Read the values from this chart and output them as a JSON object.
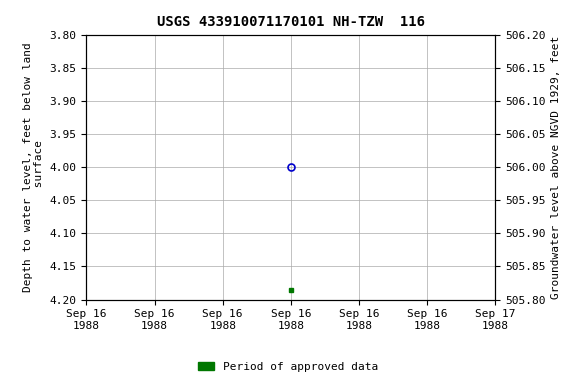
{
  "title": "USGS 433910071170101 NH-TZW  116",
  "ylabel_left": "Depth to water level, feet below land\n surface",
  "ylabel_right": "Groundwater level above NGVD 1929, feet",
  "ylim_left": [
    4.2,
    3.8
  ],
  "ylim_right": [
    505.8,
    506.2
  ],
  "yticks_left": [
    3.8,
    3.85,
    3.9,
    3.95,
    4.0,
    4.05,
    4.1,
    4.15,
    4.2
  ],
  "yticks_right": [
    506.2,
    506.15,
    506.1,
    506.05,
    506.0,
    505.95,
    505.9,
    505.85,
    505.8
  ],
  "circle_point": {
    "date_hours": 12,
    "depth": 4.0
  },
  "square_point": {
    "date_hours": 12,
    "depth": 4.185
  },
  "circle_color": "#0000cc",
  "square_color": "#007700",
  "background_color": "#ffffff",
  "grid_color": "#aaaaaa",
  "legend_label": "Period of approved data",
  "legend_color": "#007700",
  "title_fontsize": 10,
  "axis_label_fontsize": 8,
  "tick_fontsize": 8,
  "xstart_hours": 0,
  "xend_hours": 24,
  "xtick_hours": [
    0,
    4,
    8,
    12,
    16,
    20,
    24
  ],
  "xtick_labels": [
    "Sep 16\n1988",
    "Sep 16\n1988",
    "Sep 16\n1988",
    "Sep 16\n1988",
    "Sep 16\n1988",
    "Sep 16\n1988",
    "Sep 17\n1988"
  ]
}
